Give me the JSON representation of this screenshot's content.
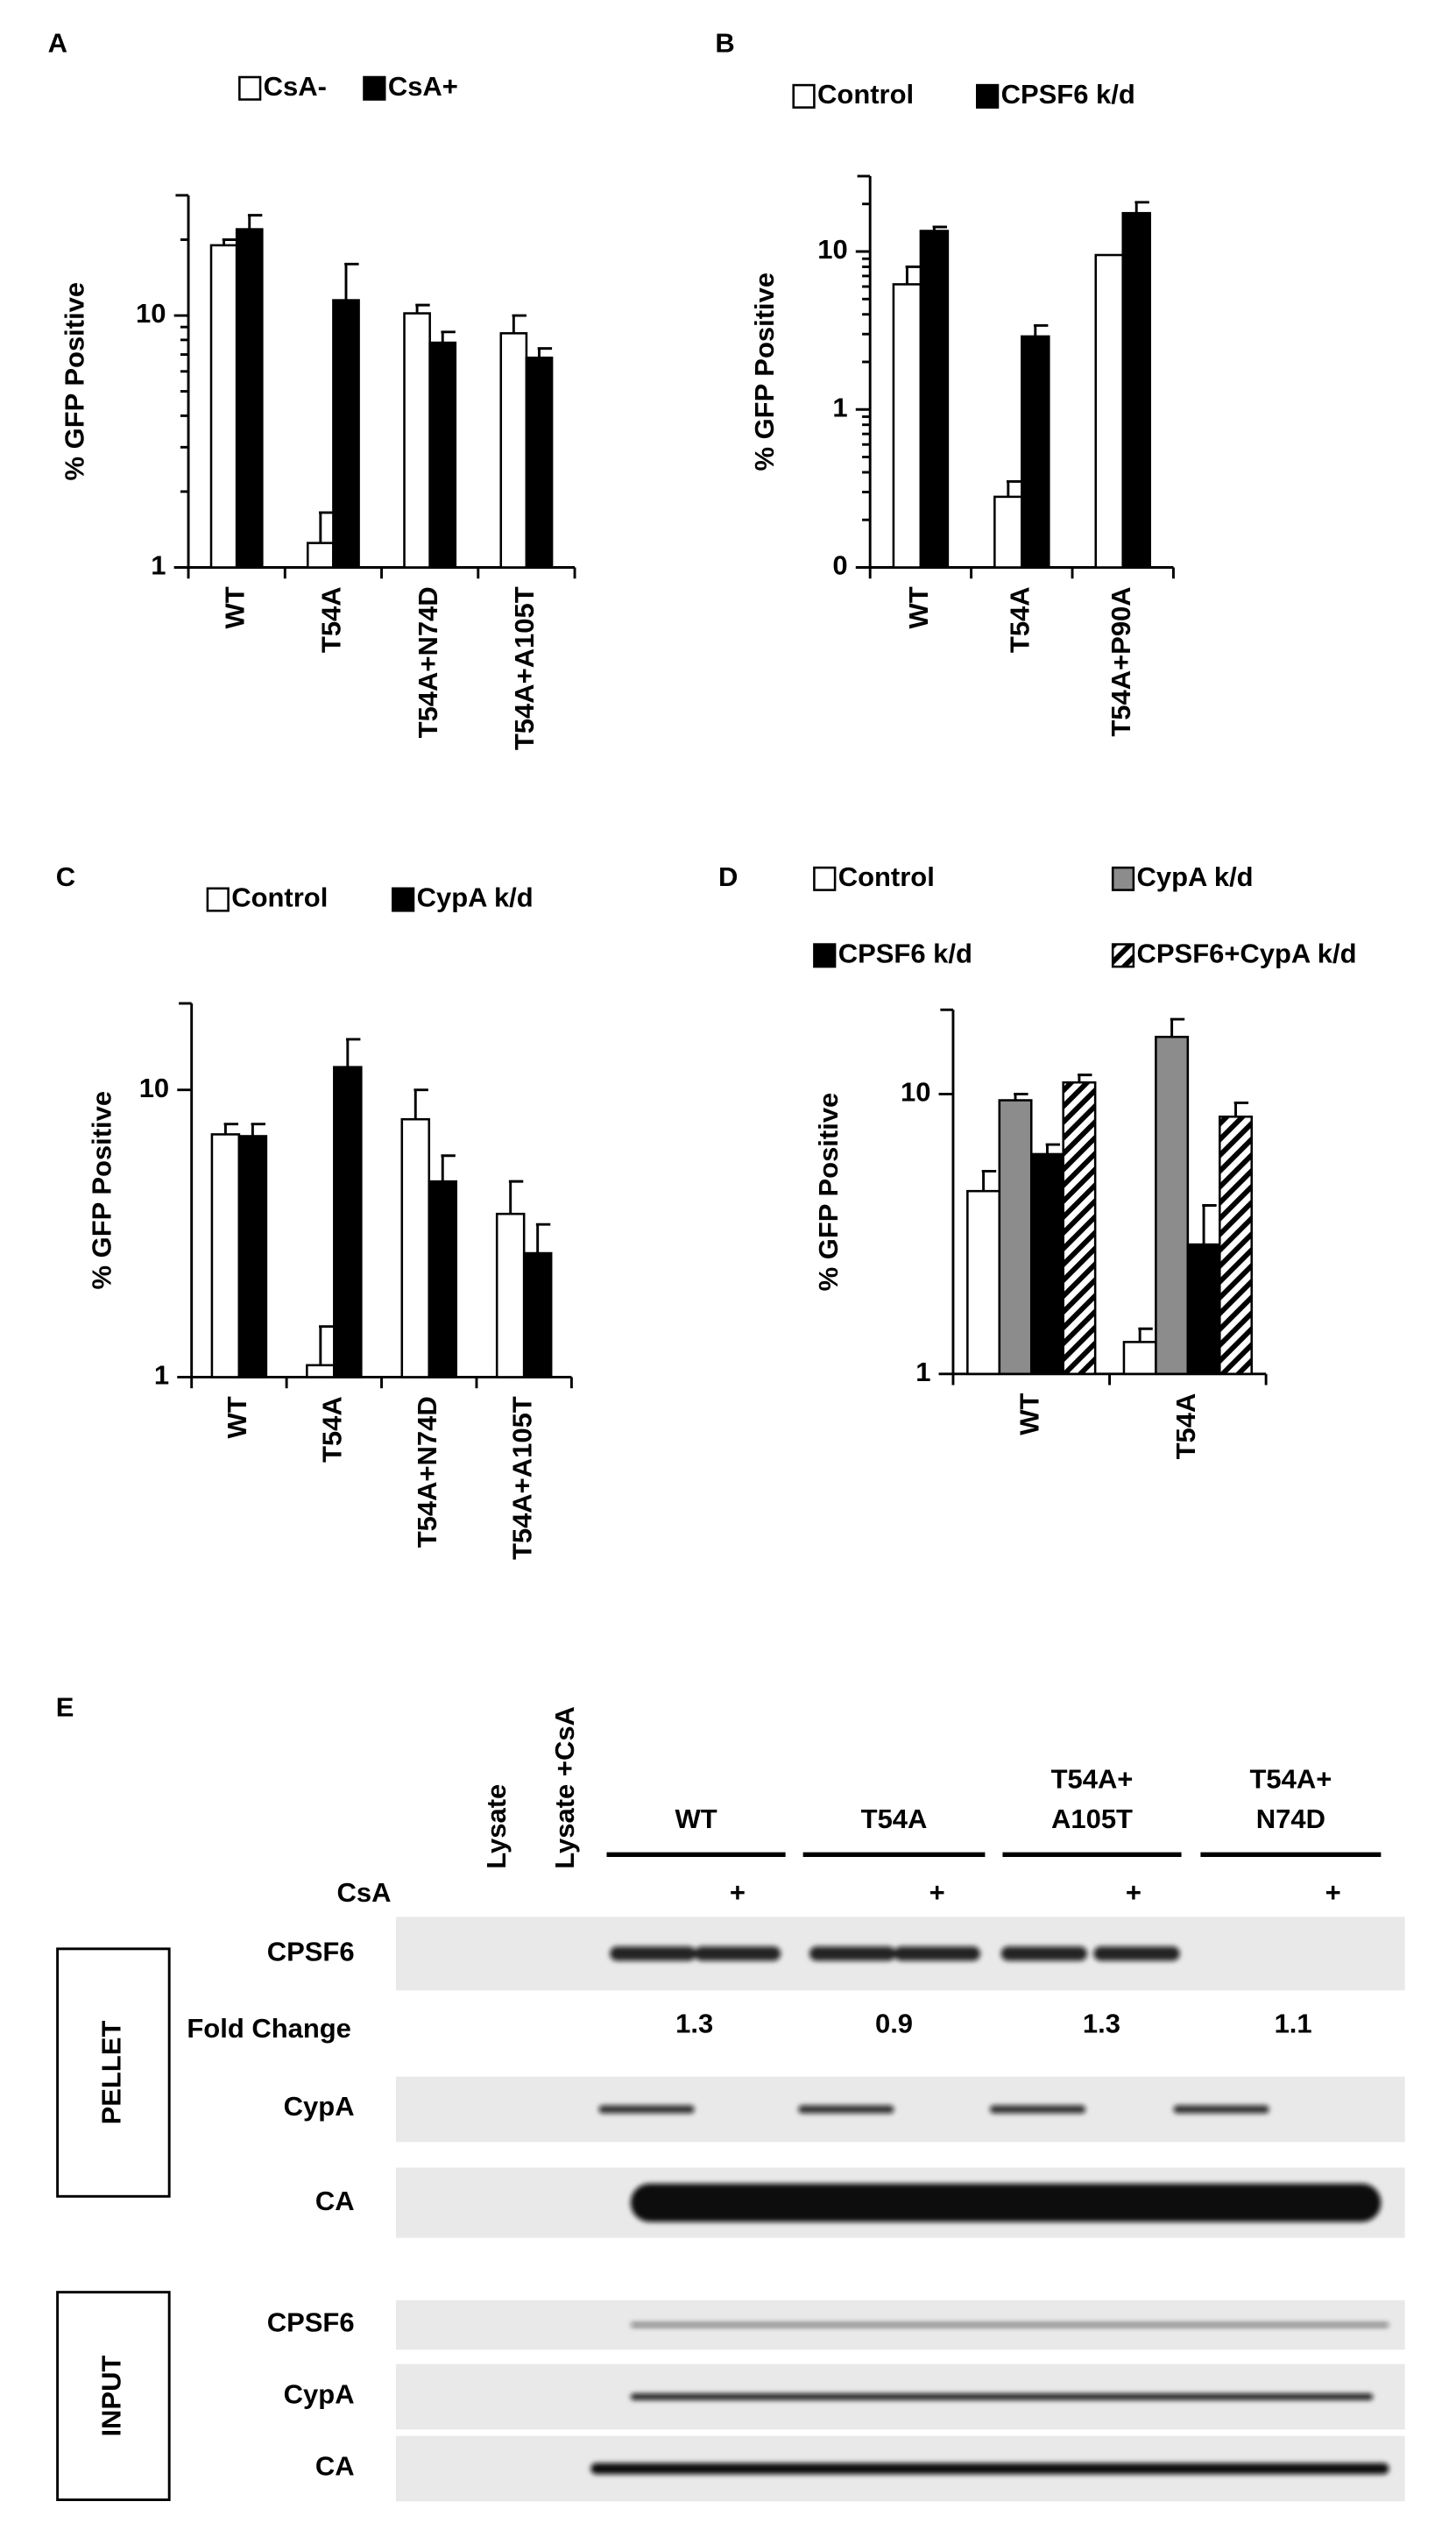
{
  "chart_data": [
    {
      "type": "bar",
      "panel": "A",
      "y_label": "% GFP Positive",
      "log_scale": true,
      "minor_ticks": true,
      "categories": [
        "WT",
        "T54A",
        "T54A+N74D",
        "T54A+A105T"
      ],
      "ylim": [
        1,
        30
      ],
      "yticks": [
        1,
        10
      ],
      "series": [
        {
          "name": "CsA-",
          "color": "#ffffff",
          "values": [
            19,
            1.25,
            10.2,
            8.5
          ],
          "errors": [
            1,
            0.4,
            0.8,
            1.5
          ]
        },
        {
          "name": "CsA+",
          "color": "#000000",
          "values": [
            22,
            11.5,
            7.8,
            6.8
          ],
          "errors": [
            3,
            4.5,
            0.8,
            0.6
          ]
        }
      ]
    },
    {
      "type": "bar",
      "panel": "B",
      "y_label": "% GFP Positive",
      "log_scale": true,
      "minor_ticks": true,
      "categories": [
        "WT",
        "T54A",
        "T54A+P90A"
      ],
      "ylim": [
        0.1,
        30
      ],
      "yticks": [
        {
          "value": 0.1,
          "label": "0"
        },
        1,
        10
      ],
      "series": [
        {
          "name": "Control",
          "color": "#ffffff",
          "values": [
            6.2,
            0.28,
            9.5
          ],
          "errors": [
            1.8,
            0.07,
            null
          ]
        },
        {
          "name": "CPSF6 k/d",
          "color": "#000000",
          "values": [
            13.5,
            2.9,
            17.5
          ],
          "errors": [
            0.8,
            0.5,
            3
          ]
        }
      ]
    },
    {
      "type": "bar",
      "panel": "C",
      "y_label": "% GFP Positive",
      "log_scale": true,
      "minor_ticks": false,
      "categories": [
        "WT",
        "T54A",
        "T54A+N74D",
        "T54A+A105T"
      ],
      "ylim": [
        1,
        20
      ],
      "yticks": [
        1,
        10
      ],
      "series": [
        {
          "name": "Control",
          "color": "#ffffff",
          "values": [
            7,
            1.1,
            7.9,
            3.7
          ],
          "errors": [
            0.6,
            0.4,
            2.1,
            1.1
          ]
        },
        {
          "name": "CypA k/d",
          "color": "#000000",
          "values": [
            6.9,
            12,
            4.8,
            2.7
          ],
          "errors": [
            0.7,
            3,
            1.1,
            0.7
          ]
        }
      ]
    },
    {
      "type": "bar",
      "panel": "D",
      "y_label": "% GFP Positive",
      "log_scale": true,
      "minor_ticks": false,
      "categories": [
        "WT",
        "T54A"
      ],
      "ylim": [
        1,
        20
      ],
      "yticks": [
        1,
        10
      ],
      "series": [
        {
          "name": "Control",
          "color": "#ffffff",
          "values": [
            4.5,
            1.3
          ],
          "errors": [
            0.8,
            0.15
          ]
        },
        {
          "name": "CypA k/d",
          "color": "#8c8c8c",
          "values": [
            9.5,
            16
          ],
          "errors": [
            0.5,
            2.5
          ]
        },
        {
          "name": "CPSF6 k/d",
          "color": "#000000",
          "values": [
            6.1,
            2.9
          ],
          "errors": [
            0.5,
            1.1
          ]
        },
        {
          "name": "CPSF6+CypA k/d",
          "color": "#ffffff",
          "hatch": true,
          "values": [
            11,
            8.3
          ],
          "errors": [
            0.7,
            1
          ]
        }
      ]
    }
  ],
  "panel_e": {
    "label": "E",
    "lanes": [
      "Lysate",
      "Lysate +CsA"
    ],
    "groups": [
      [
        "WT"
      ],
      [
        "T54A"
      ],
      [
        "T54A+",
        "A105T"
      ],
      [
        "T54A+",
        "N74D"
      ]
    ],
    "treatment": "CsA",
    "treatment_marks": [
      "+",
      "+",
      "+",
      "+"
    ],
    "sections": [
      {
        "label": "PELLET",
        "rows": [
          "CPSF6",
          "CypA",
          "CA"
        ]
      },
      {
        "label": "INPUT",
        "rows": [
          "CPSF6",
          "CypA",
          "CA"
        ]
      }
    ],
    "fold_change": {
      "label": "Fold Change",
      "values": [
        1.3,
        0.9,
        1.3,
        1.1
      ]
    }
  }
}
